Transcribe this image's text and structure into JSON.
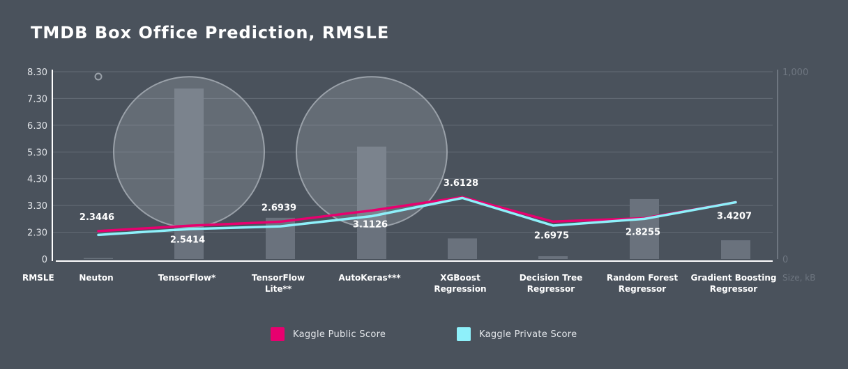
{
  "chart_data": {
    "type": "line",
    "title": "TMDB Box Office Prediction, RMSLE",
    "categories": [
      [
        "Neuton"
      ],
      [
        "TensorFlow*"
      ],
      [
        "TensorFlow",
        "Lite**"
      ],
      [
        "AutoKeras***"
      ],
      [
        "XGBoost",
        "Regression"
      ],
      [
        "Decision Tree",
        "Regressor"
      ],
      [
        "Random Forest",
        "Regressor"
      ],
      [
        "Gradient Boosting",
        "Regressor"
      ]
    ],
    "xlabel": "RMSLE",
    "y_ticks": [
      "0",
      "2.30",
      "3.30",
      "4.30",
      "5.30",
      "6.30",
      "7.30",
      "8.30"
    ],
    "y2_ticks": [
      "0",
      "1,000"
    ],
    "y2label": "Size, kB",
    "y2lim": [
      0,
      1000
    ],
    "series": [
      {
        "name": "Kaggle Public Score",
        "color": "#e8006f",
        "values": [
          2.3446,
          2.5414,
          2.6939,
          3.1126,
          3.6128,
          2.6975,
          2.8255,
          3.4207
        ]
      },
      {
        "name": "Kaggle Private Score",
        "color": "#8ef0fa",
        "values": [
          2.2,
          2.42,
          2.52,
          2.9,
          3.58,
          2.55,
          2.8,
          3.42
        ]
      }
    ],
    "data_labels": [
      "2.3446",
      "2.5414",
      "2.6939",
      "3.1126",
      "3.6128",
      "2.6975",
      "2.8255",
      "3.4207"
    ],
    "size_kb": [
      5,
      910,
      220,
      600,
      110,
      15,
      320,
      100
    ],
    "bubble_categories": [
      1,
      3
    ],
    "neuton_marker": true,
    "grid": true,
    "legend_position": "bottom-center"
  }
}
